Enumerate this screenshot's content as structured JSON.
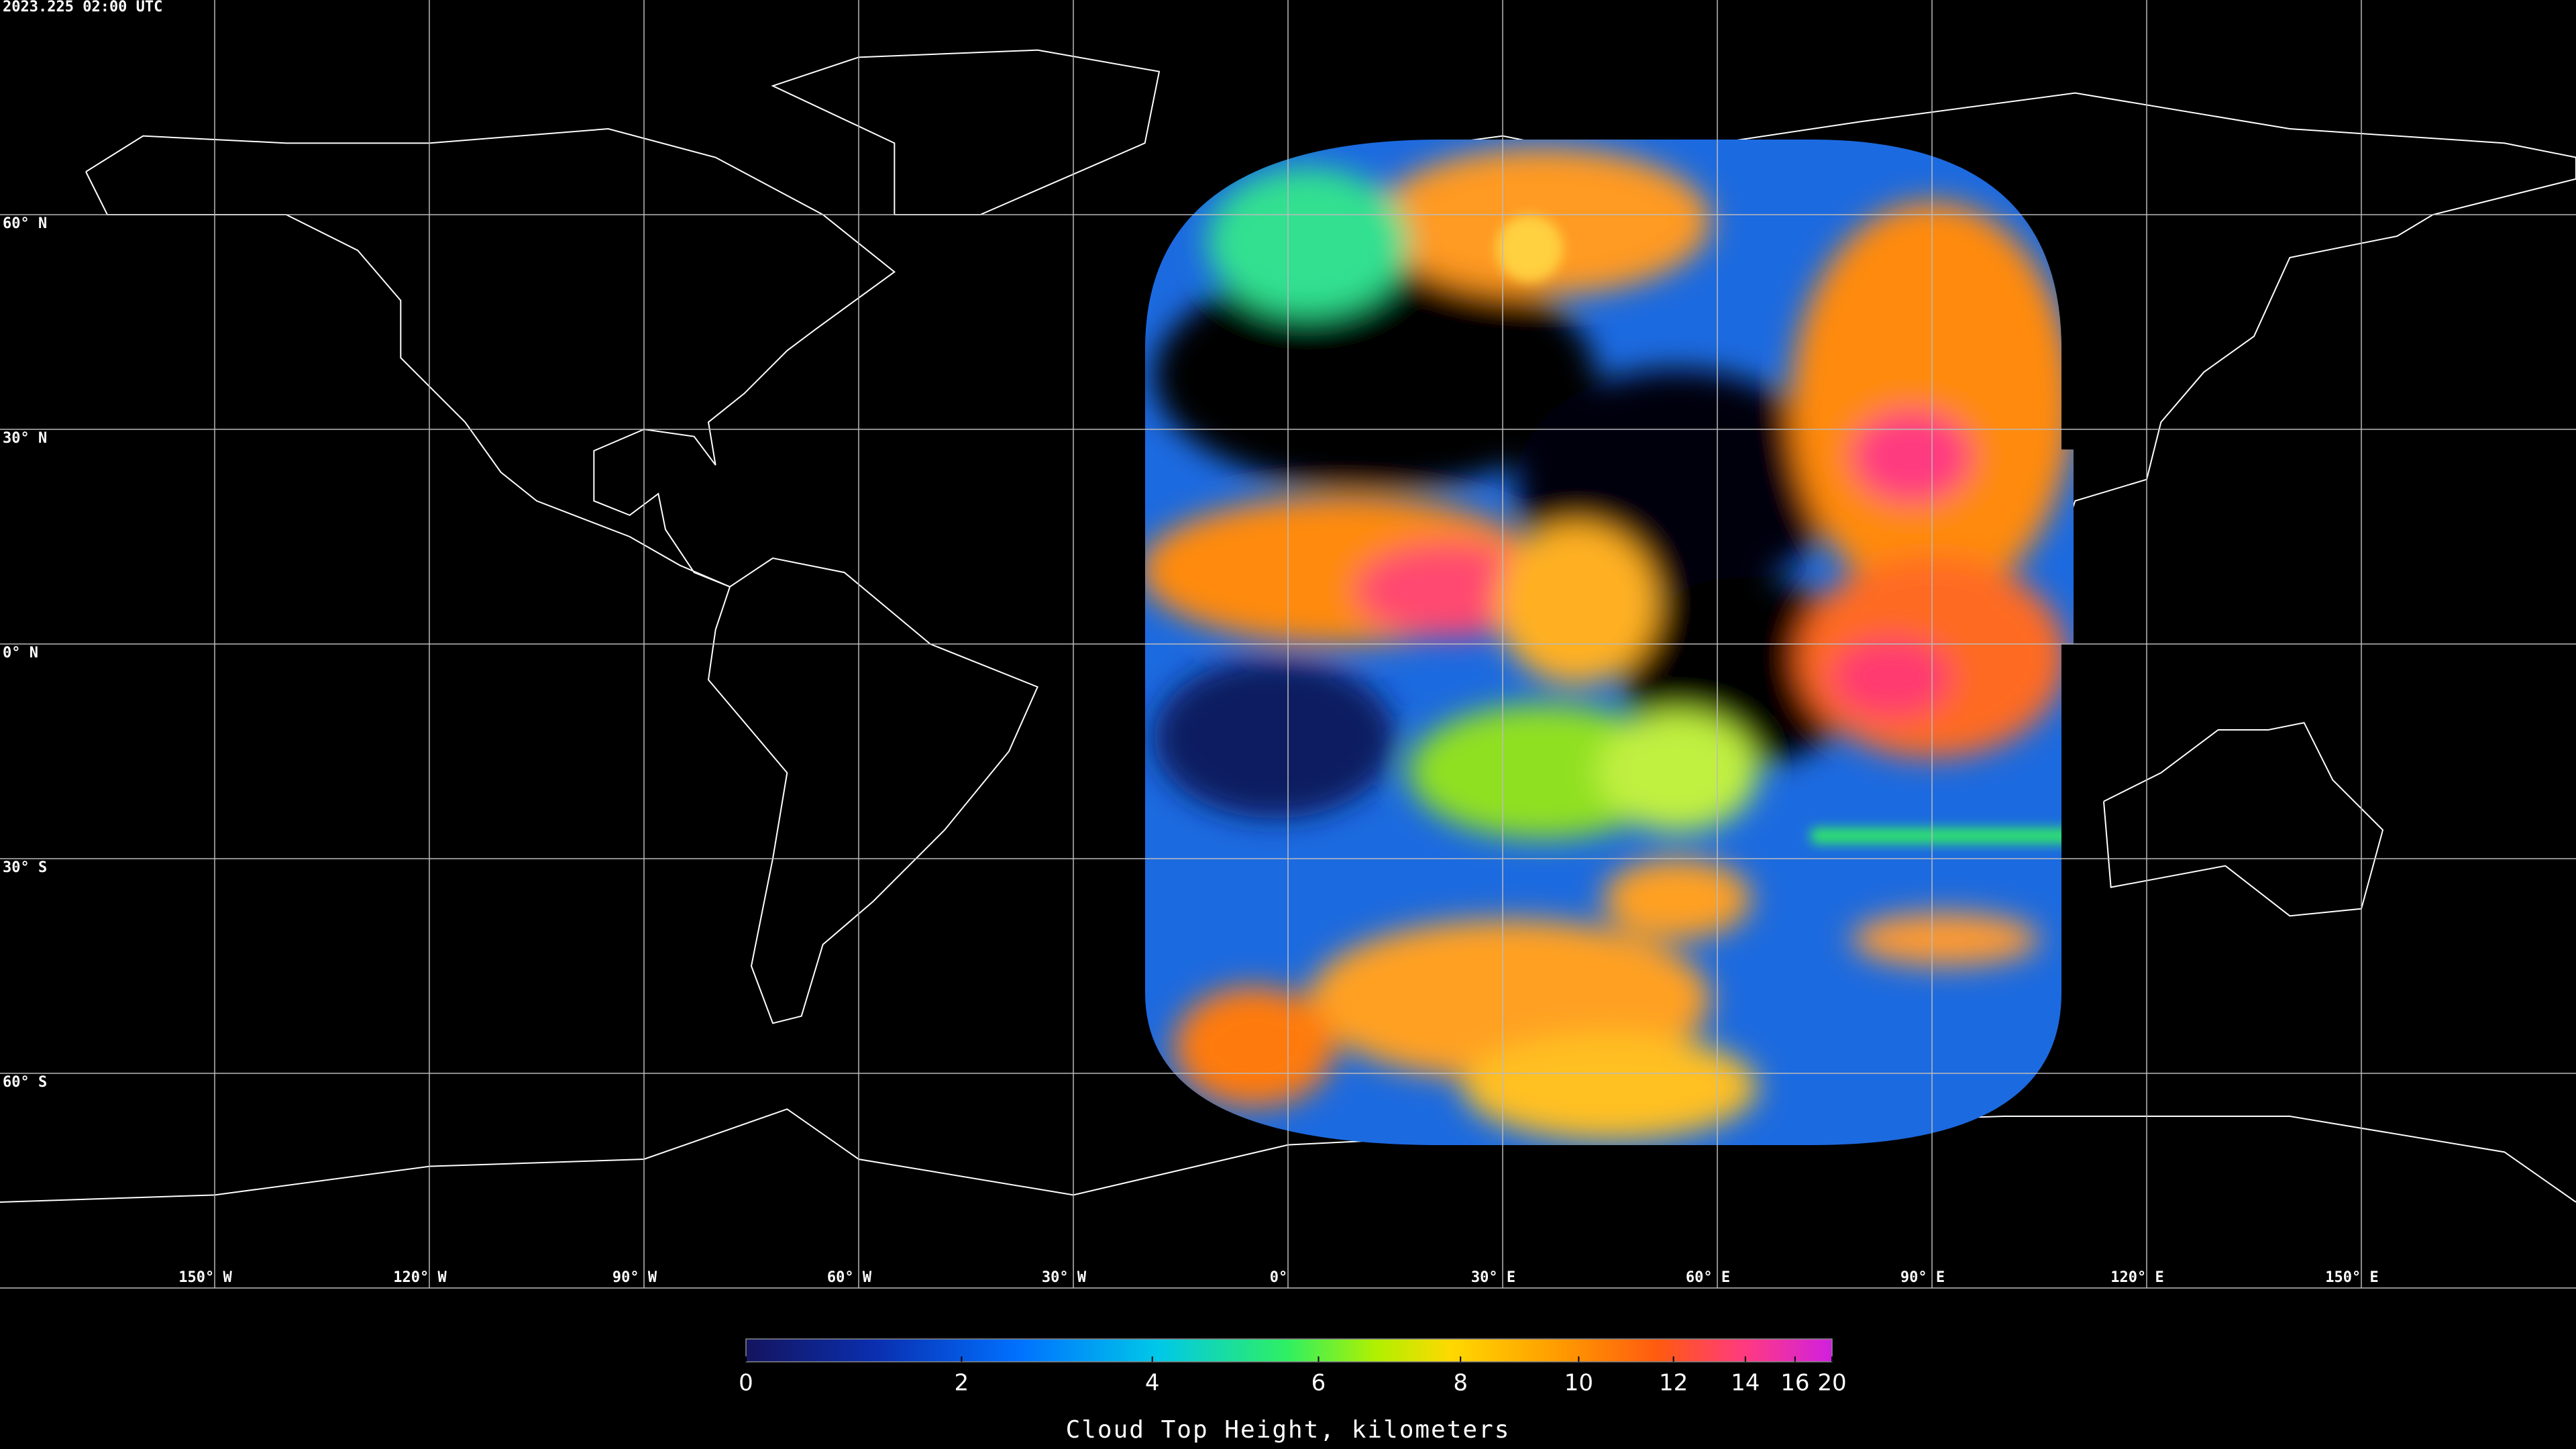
{
  "header": {
    "timestamp": "2023.225 02:00 UTC"
  },
  "map": {
    "grid": true,
    "latitudes": [
      {
        "value": 60,
        "label": "60° N"
      },
      {
        "value": 30,
        "label": "30° N"
      },
      {
        "value": 0,
        "label": "0° N"
      },
      {
        "value": -30,
        "label": "30° S"
      },
      {
        "value": -60,
        "label": "60° S"
      }
    ],
    "longitudes": [
      {
        "value": -150,
        "label": "150° W"
      },
      {
        "value": -120,
        "label": "120° W"
      },
      {
        "value": -90,
        "label": "90° W"
      },
      {
        "value": -60,
        "label": "60° W"
      },
      {
        "value": -30,
        "label": "30° W"
      },
      {
        "value": 0,
        "label": "0°"
      },
      {
        "value": 30,
        "label": "30° E"
      },
      {
        "value": 60,
        "label": "60° E"
      },
      {
        "value": 90,
        "label": "90° E"
      },
      {
        "value": 120,
        "label": "120° E"
      },
      {
        "value": 150,
        "label": "150° E"
      }
    ]
  },
  "colorbar": {
    "label": "Cloud Top Height, kilometers",
    "clim": [
      0,
      20
    ],
    "ticks": [
      0,
      2,
      4,
      6,
      8,
      10,
      12,
      14,
      16,
      20
    ]
  }
}
